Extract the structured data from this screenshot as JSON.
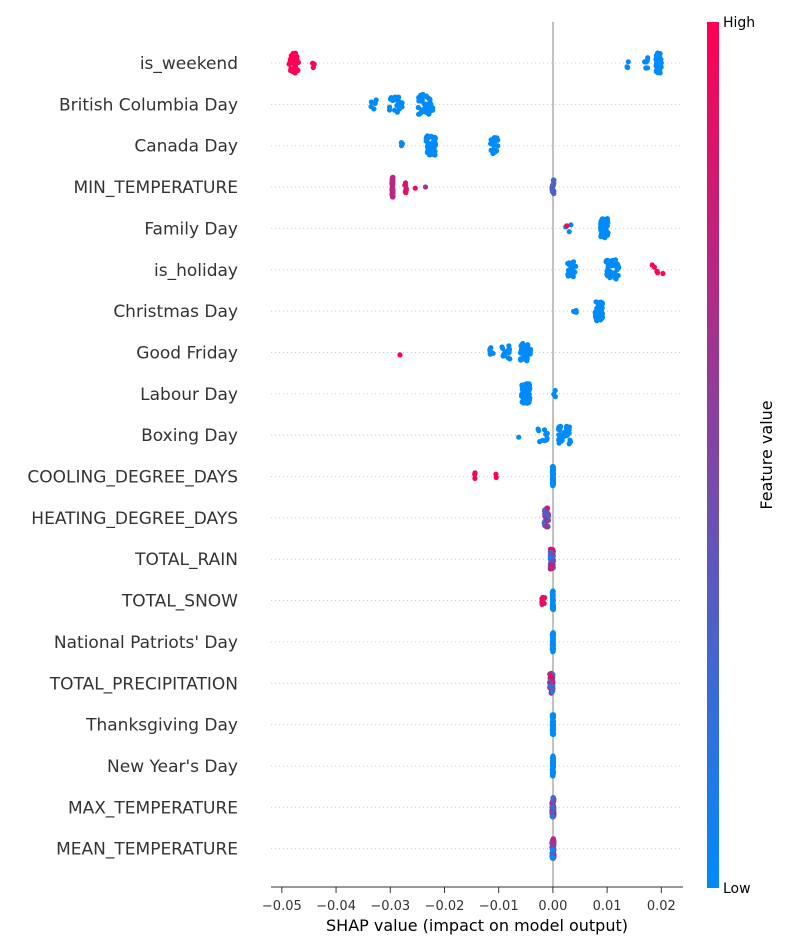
{
  "chart_data": {
    "type": "scatter",
    "subtype": "shap-beeswarm",
    "xlabel": "SHAP value (impact on model output)",
    "xlim": [
      -0.052,
      0.024
    ],
    "xticks": [
      -0.05,
      -0.04,
      -0.03,
      -0.02,
      -0.01,
      0.0,
      0.01,
      0.02
    ],
    "tick_labels": [
      "−0.05",
      "−0.04",
      "−0.03",
      "−0.02",
      "−0.01",
      "0.00",
      "0.01",
      "0.02"
    ],
    "colorbar": {
      "title": "Feature value",
      "high_label": "High",
      "low_label": "Low",
      "low_color": "#008bfb",
      "high_color": "#ff0052"
    },
    "colors": {
      "low": "#008bfb",
      "high": "#ff0052",
      "zero_line": "#999999",
      "grid": "#cccccc"
    },
    "features": [
      {
        "name": "is_weekend",
        "clusters": [
          {
            "x": -0.0478,
            "spread": 0.0009,
            "n": 40,
            "v": 1.0
          },
          {
            "x": -0.0442,
            "spread": 0.0002,
            "n": 3,
            "v": 1.0
          },
          {
            "x": 0.0195,
            "spread": 0.0005,
            "n": 60,
            "v": 0.0
          },
          {
            "x": 0.0172,
            "spread": 0.0003,
            "n": 6,
            "v": 0.0
          },
          {
            "x": 0.014,
            "spread": 0.0005,
            "n": 3,
            "v": 0.0
          }
        ]
      },
      {
        "name": "British Columbia Day",
        "clusters": [
          {
            "x": -0.0235,
            "spread": 0.0014,
            "n": 50,
            "v": 0.0
          },
          {
            "x": -0.029,
            "spread": 0.0012,
            "n": 22,
            "v": 0.0
          },
          {
            "x": -0.033,
            "spread": 0.0006,
            "n": 5,
            "v": 0.0
          }
        ]
      },
      {
        "name": "Canada Day",
        "clusters": [
          {
            "x": -0.0225,
            "spread": 0.0009,
            "n": 48,
            "v": 0.0
          },
          {
            "x": -0.0108,
            "spread": 0.0007,
            "n": 22,
            "v": 0.0
          },
          {
            "x": -0.028,
            "spread": 0.0003,
            "n": 3,
            "v": 0.0
          }
        ]
      },
      {
        "name": "MIN_TEMPERATURE",
        "clusters": [
          {
            "x": -0.0296,
            "spread": 0.0001,
            "n": 40,
            "v": 0.72
          },
          {
            "x": -0.0272,
            "spread": 0.0002,
            "n": 8,
            "v": 0.85
          },
          {
            "x": -0.0255,
            "spread": 0.0001,
            "n": 1,
            "v": 0.95
          },
          {
            "x": -0.0235,
            "spread": 0.0001,
            "n": 1,
            "v": 0.6
          },
          {
            "x": 0.0,
            "spread": 0.0002,
            "n": 20,
            "v": 0.3
          }
        ]
      },
      {
        "name": "Family Day",
        "clusters": [
          {
            "x": 0.0095,
            "spread": 0.0007,
            "n": 48,
            "v": 0.0
          },
          {
            "x": 0.003,
            "spread": 0.0007,
            "n": 3,
            "v": 0.0
          },
          {
            "x": 0.0025,
            "spread": 0.0001,
            "n": 1,
            "v": 1.0
          }
        ]
      },
      {
        "name": "is_holiday",
        "clusters": [
          {
            "x": 0.011,
            "spread": 0.0012,
            "n": 40,
            "v": 0.0
          },
          {
            "x": 0.0035,
            "spread": 0.0008,
            "n": 22,
            "v": 0.0
          },
          {
            "x": 0.0188,
            "spread": 0.0005,
            "n": 4,
            "v": 1.0
          },
          {
            "x": 0.0202,
            "spread": 0.0001,
            "n": 1,
            "v": 1.0
          }
        ]
      },
      {
        "name": "Christmas Day",
        "clusters": [
          {
            "x": 0.0085,
            "spread": 0.0007,
            "n": 50,
            "v": 0.0
          },
          {
            "x": 0.004,
            "spread": 0.0005,
            "n": 4,
            "v": 0.0
          }
        ]
      },
      {
        "name": "Good Friday",
        "clusters": [
          {
            "x": -0.005,
            "spread": 0.001,
            "n": 30,
            "v": 0.0
          },
          {
            "x": -0.0088,
            "spread": 0.0009,
            "n": 15,
            "v": 0.0
          },
          {
            "x": -0.0115,
            "spread": 0.0005,
            "n": 6,
            "v": 0.0
          },
          {
            "x": -0.0283,
            "spread": 0.0001,
            "n": 1,
            "v": 1.0
          }
        ]
      },
      {
        "name": "Labour Day",
        "clusters": [
          {
            "x": -0.005,
            "spread": 0.0008,
            "n": 55,
            "v": 0.0
          },
          {
            "x": 0.0003,
            "spread": 0.0002,
            "n": 3,
            "v": 0.0
          }
        ]
      },
      {
        "name": "Boxing Day",
        "clusters": [
          {
            "x": 0.0022,
            "spread": 0.0012,
            "n": 30,
            "v": 0.0
          },
          {
            "x": -0.002,
            "spread": 0.001,
            "n": 10,
            "v": 0.0
          },
          {
            "x": -0.0065,
            "spread": 0.0002,
            "n": 1,
            "v": 0.0
          }
        ]
      },
      {
        "name": "COOLING_DEGREE_DAYS",
        "clusters": [
          {
            "x": 0.0,
            "spread": 0.0001,
            "n": 80,
            "v": 0.0
          },
          {
            "x": -0.0143,
            "spread": 0.0002,
            "n": 3,
            "v": 1.0
          },
          {
            "x": -0.0105,
            "spread": 0.0001,
            "n": 2,
            "v": 1.0
          }
        ]
      },
      {
        "name": "HEATING_DEGREE_DAYS",
        "clusters": [
          {
            "x": -0.0012,
            "spread": 0.0004,
            "n": 40,
            "v": -1
          }
        ]
      },
      {
        "name": "TOTAL_RAIN",
        "clusters": [
          {
            "x": -0.0002,
            "spread": 0.0003,
            "n": 60,
            "v": -1
          }
        ]
      },
      {
        "name": "TOTAL_SNOW",
        "clusters": [
          {
            "x": 0.0,
            "spread": 0.0001,
            "n": 55,
            "v": 0.0
          },
          {
            "x": -0.0018,
            "spread": 0.0003,
            "n": 8,
            "v": 0.9
          }
        ]
      },
      {
        "name": "National Patriots' Day",
        "clusters": [
          {
            "x": 0.0,
            "spread": 0.0001,
            "n": 70,
            "v": 0.0
          }
        ]
      },
      {
        "name": "TOTAL_PRECIPITATION",
        "clusters": [
          {
            "x": -0.0003,
            "spread": 0.0003,
            "n": 60,
            "v": -1
          }
        ]
      },
      {
        "name": "Thanksgiving Day",
        "clusters": [
          {
            "x": 0.0,
            "spread": 0.0001,
            "n": 70,
            "v": 0.0
          }
        ]
      },
      {
        "name": "New Year's Day",
        "clusters": [
          {
            "x": 0.0,
            "spread": 0.0001,
            "n": 70,
            "v": 0.0
          }
        ]
      },
      {
        "name": "MAX_TEMPERATURE",
        "clusters": [
          {
            "x": 0.0,
            "spread": 0.0002,
            "n": 60,
            "v": -1
          }
        ]
      },
      {
        "name": "MEAN_TEMPERATURE",
        "clusters": [
          {
            "x": 0.0,
            "spread": 0.0002,
            "n": 60,
            "v": -1
          }
        ]
      }
    ]
  }
}
